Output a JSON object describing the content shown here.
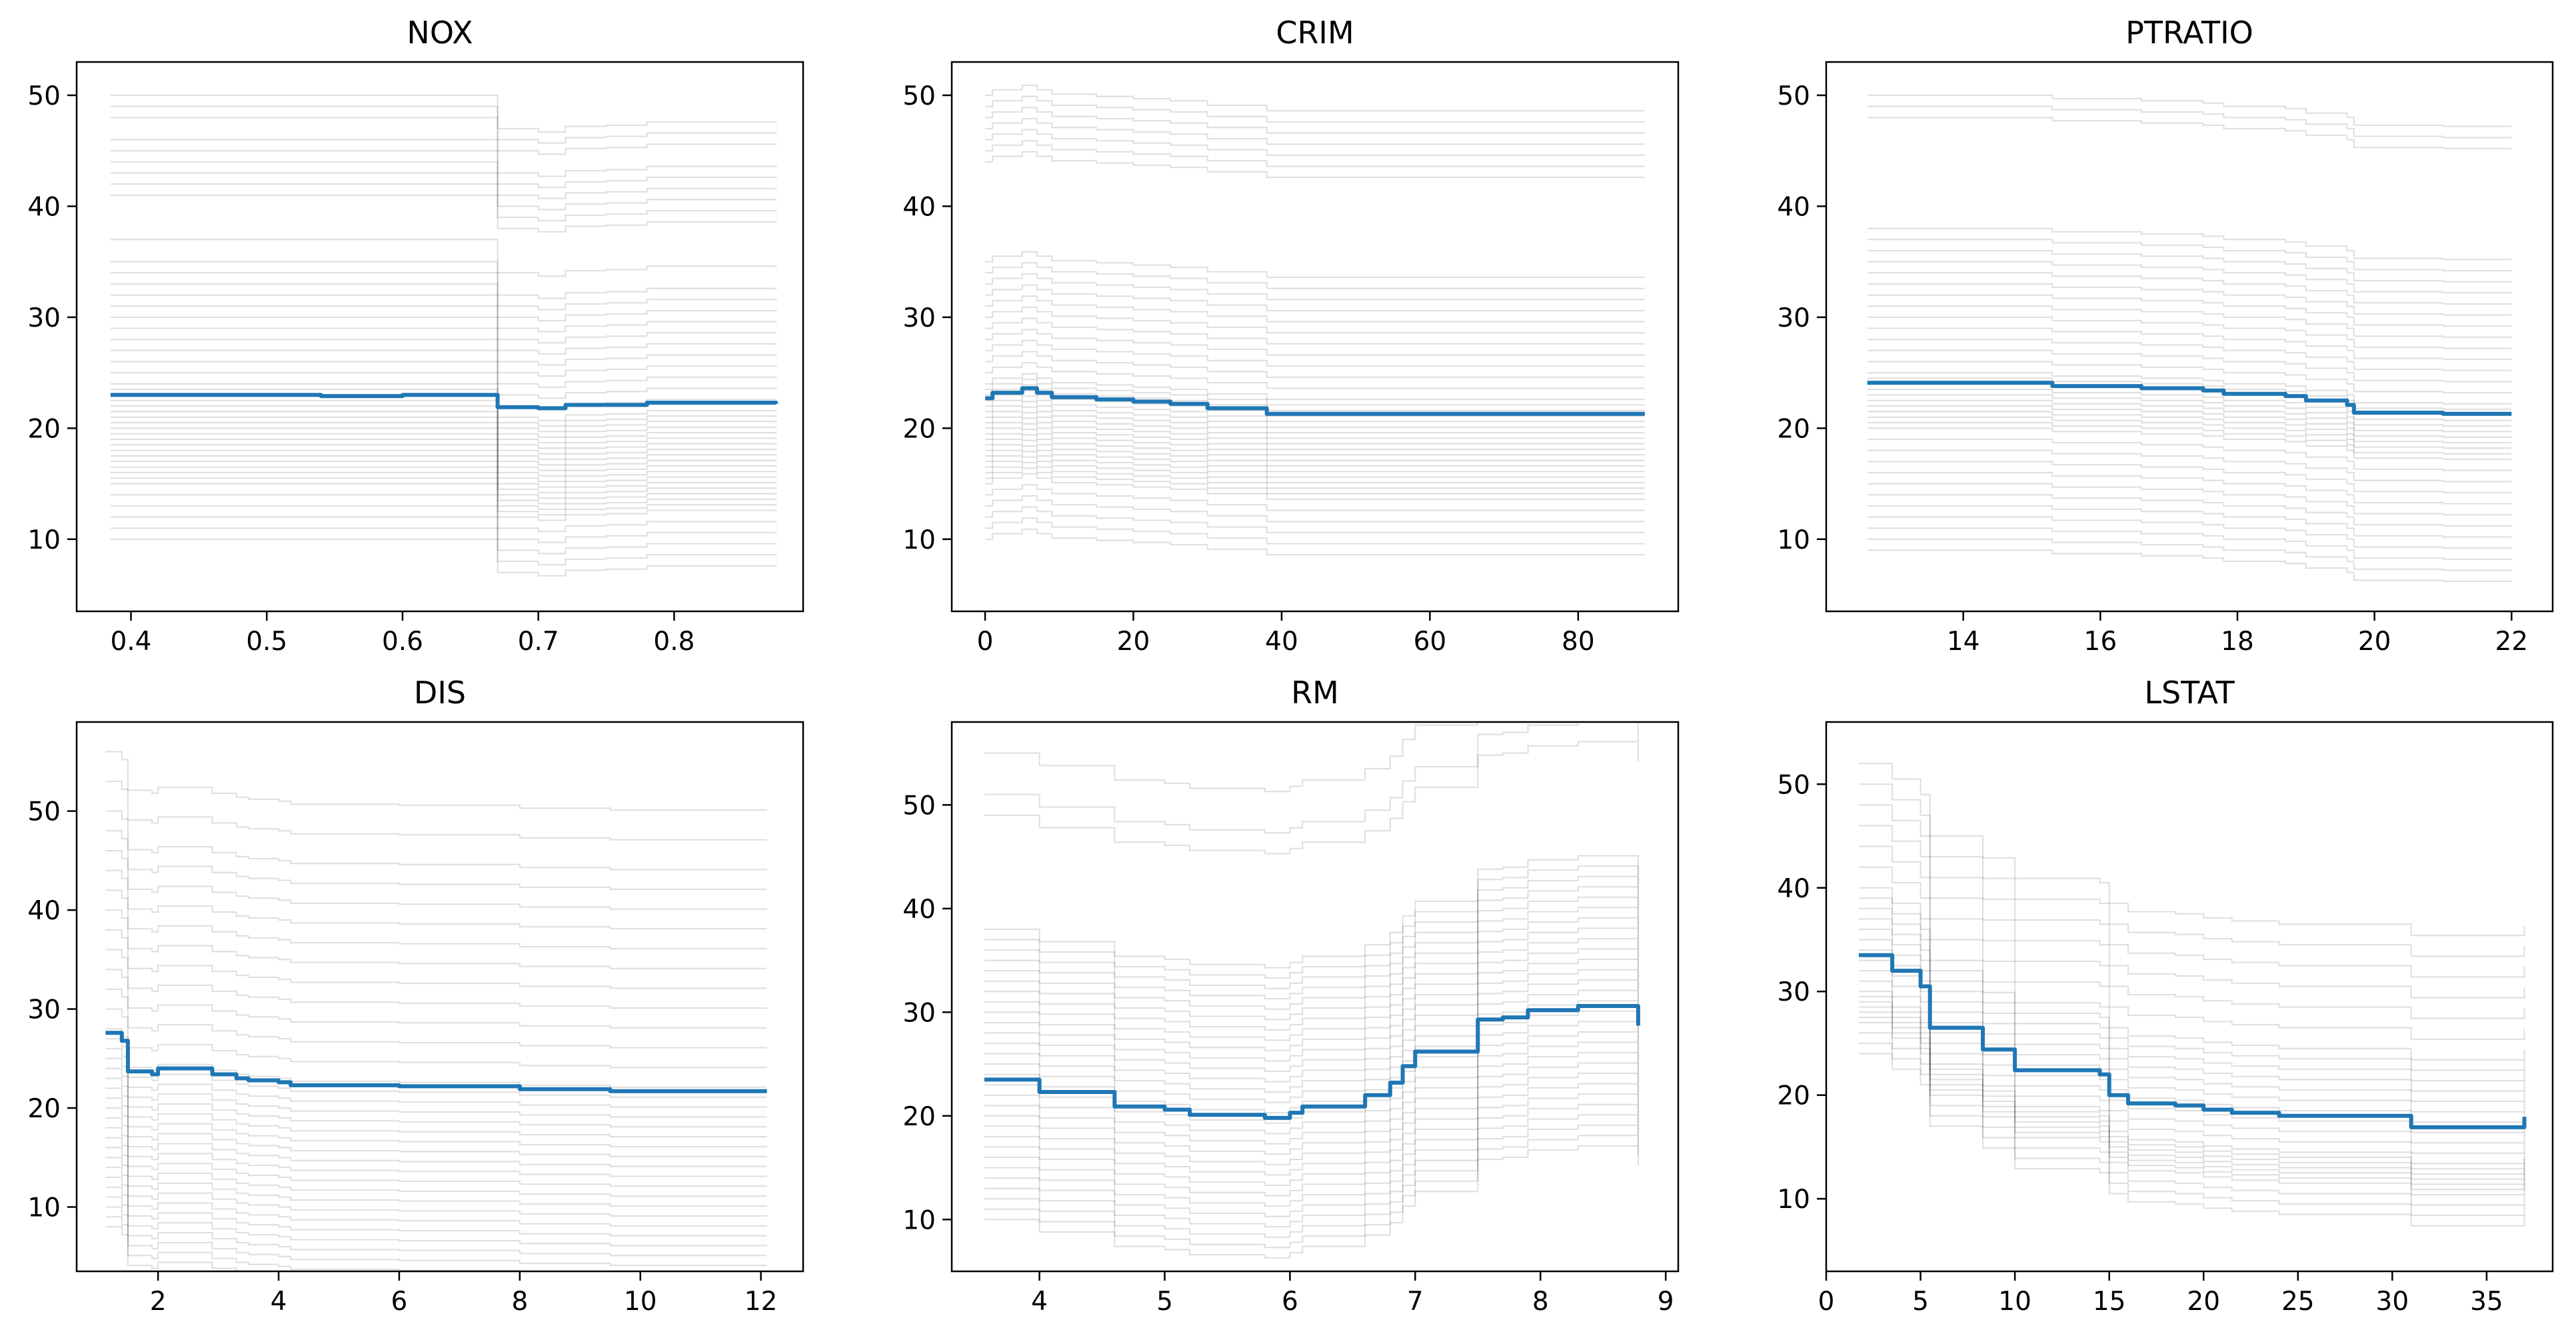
{
  "chart_data": [
    {
      "type": "line",
      "title": "NOX",
      "xlim": [
        0.36,
        0.895
      ],
      "ylim": [
        3.5,
        53
      ],
      "xticks": [
        {
          "value": 0.4,
          "label": "0.4"
        },
        {
          "value": 0.5,
          "label": "0.5"
        },
        {
          "value": 0.6,
          "label": "0.6"
        },
        {
          "value": 0.7,
          "label": "0.7"
        },
        {
          "value": 0.8,
          "label": "0.8"
        }
      ],
      "yticks": [
        {
          "value": 10,
          "label": "10"
        },
        {
          "value": 20,
          "label": "20"
        },
        {
          "value": 30,
          "label": "30"
        },
        {
          "value": 40,
          "label": "40"
        },
        {
          "value": 50,
          "label": "50"
        }
      ],
      "grid": false,
      "legend": "none",
      "mean_color": "#1f77b4",
      "ice_color": "#000000",
      "mean_curve": {
        "x": [
          0.385,
          0.45,
          0.53,
          0.54,
          0.58,
          0.6,
          0.66,
          0.67,
          0.7,
          0.72,
          0.75,
          0.78,
          0.8,
          0.875
        ],
        "y": [
          23.0,
          23.0,
          23.0,
          22.9,
          22.9,
          23.0,
          23.0,
          21.9,
          21.8,
          22.1,
          22.1,
          22.3,
          22.3,
          22.2
        ]
      },
      "ice_curves": {
        "x": [
          0.385,
          0.45,
          0.53,
          0.54,
          0.58,
          0.6,
          0.66,
          0.67,
          0.7,
          0.72,
          0.75,
          0.78,
          0.8,
          0.875
        ],
        "start_values": [
          10,
          11,
          12,
          13,
          14,
          15,
          15.5,
          16,
          16.5,
          17,
          17.5,
          18,
          18.5,
          19,
          19.5,
          20,
          20.5,
          21,
          21.5,
          22,
          22.5,
          23,
          23.5,
          24,
          25,
          26,
          27,
          28,
          29,
          30,
          31,
          32,
          33,
          34,
          35,
          37,
          41,
          42,
          43,
          44,
          45,
          46,
          48,
          49,
          50
        ],
        "offsets": [
          0,
          0,
          0,
          0,
          0,
          0,
          0,
          -3,
          -3.3,
          -2.8,
          -2.7,
          -2.4,
          -2.4,
          -2.5
        ]
      }
    },
    {
      "type": "line",
      "title": "CRIM",
      "xlim": [
        -4.5,
        93.5
      ],
      "ylim": [
        3.5,
        53
      ],
      "xticks": [
        {
          "value": 0,
          "label": "0"
        },
        {
          "value": 20,
          "label": "20"
        },
        {
          "value": 40,
          "label": "40"
        },
        {
          "value": 60,
          "label": "60"
        },
        {
          "value": 80,
          "label": "80"
        }
      ],
      "yticks": [
        {
          "value": 10,
          "label": "10"
        },
        {
          "value": 20,
          "label": "20"
        },
        {
          "value": 30,
          "label": "30"
        },
        {
          "value": 40,
          "label": "40"
        },
        {
          "value": 50,
          "label": "50"
        }
      ],
      "grid": false,
      "legend": "none",
      "mean_color": "#1f77b4",
      "ice_color": "#000000",
      "mean_curve": {
        "x": [
          0,
          1,
          3,
          5,
          7,
          9,
          15,
          20,
          25,
          30,
          38,
          50,
          70,
          89
        ],
        "y": [
          22.7,
          23.2,
          23.2,
          23.6,
          23.2,
          22.8,
          22.6,
          22.4,
          22.2,
          21.8,
          21.3,
          21.3,
          21.3,
          21.3
        ]
      },
      "ice_curves": {
        "x": [
          0,
          1,
          3,
          5,
          7,
          9,
          15,
          20,
          25,
          30,
          38,
          50,
          70,
          89
        ],
        "start_values": [
          10,
          11,
          12,
          13,
          14,
          15,
          15.5,
          16,
          16.5,
          17,
          17.5,
          18,
          18.5,
          19,
          19.5,
          20,
          20.5,
          21,
          21.5,
          22,
          22.5,
          23,
          23.5,
          24,
          25,
          26,
          27,
          28,
          29,
          30,
          31,
          32,
          33,
          34,
          35,
          44,
          45,
          46,
          47,
          48,
          49,
          50
        ],
        "offsets": [
          0,
          0.5,
          0.5,
          0.9,
          0.5,
          0.1,
          -0.1,
          -0.3,
          -0.5,
          -0.9,
          -1.4,
          -1.4,
          -1.4,
          -1.4
        ]
      }
    },
    {
      "type": "line",
      "title": "PTRATIO",
      "xlim": [
        12.0,
        22.6
      ],
      "ylim": [
        3.5,
        53
      ],
      "xticks": [
        {
          "value": 14,
          "label": "14"
        },
        {
          "value": 16,
          "label": "16"
        },
        {
          "value": 18,
          "label": "18"
        },
        {
          "value": 20,
          "label": "20"
        },
        {
          "value": 22,
          "label": "22"
        }
      ],
      "yticks": [
        {
          "value": 10,
          "label": "10"
        },
        {
          "value": 20,
          "label": "20"
        },
        {
          "value": 30,
          "label": "30"
        },
        {
          "value": 40,
          "label": "40"
        },
        {
          "value": 50,
          "label": "50"
        }
      ],
      "grid": false,
      "legend": "none",
      "mean_color": "#1f77b4",
      "ice_color": "#000000",
      "mean_curve": {
        "x": [
          12.6,
          14,
          15.2,
          15.3,
          16.6,
          17.5,
          17.8,
          18.4,
          18.7,
          19.0,
          19.6,
          19.7,
          20.9,
          21.0,
          22.0
        ],
        "y": [
          24.1,
          24.1,
          24.1,
          23.8,
          23.6,
          23.4,
          23.1,
          23.1,
          22.9,
          22.5,
          22.1,
          21.4,
          21.4,
          21.3,
          21.3
        ]
      },
      "ice_curves": {
        "x": [
          12.6,
          14,
          15.2,
          15.3,
          16.6,
          17.5,
          17.8,
          18.4,
          18.7,
          19.0,
          19.6,
          19.7,
          20.9,
          21.0,
          22.0
        ],
        "start_values": [
          9,
          10,
          11,
          12,
          13,
          14,
          15,
          16,
          17,
          18,
          19,
          20,
          20.5,
          21,
          21.5,
          22,
          22.5,
          23,
          23.5,
          24,
          24.5,
          25,
          26,
          27,
          28,
          29,
          30,
          31,
          32,
          33,
          34,
          35,
          36,
          37,
          38,
          48,
          49,
          50
        ],
        "offsets": [
          0,
          0,
          0,
          -0.3,
          -0.5,
          -0.7,
          -1.0,
          -1.0,
          -1.2,
          -1.6,
          -2.0,
          -2.7,
          -2.7,
          -2.8,
          -2.8
        ]
      }
    },
    {
      "type": "line",
      "title": "DIS",
      "xlim": [
        0.65,
        12.7
      ],
      "ylim": [
        3.5,
        59
      ],
      "xticks": [
        {
          "value": 2,
          "label": "2"
        },
        {
          "value": 4,
          "label": "4"
        },
        {
          "value": 6,
          "label": "6"
        },
        {
          "value": 8,
          "label": "8"
        },
        {
          "value": 10,
          "label": "10"
        },
        {
          "value": 12,
          "label": "12"
        }
      ],
      "yticks": [
        {
          "value": 10,
          "label": "10"
        },
        {
          "value": 20,
          "label": "20"
        },
        {
          "value": 30,
          "label": "30"
        },
        {
          "value": 40,
          "label": "40"
        },
        {
          "value": 50,
          "label": "50"
        }
      ],
      "grid": false,
      "legend": "none",
      "mean_color": "#1f77b4",
      "ice_color": "#000000",
      "mean_curve": {
        "x": [
          1.13,
          1.4,
          1.5,
          1.9,
          2.0,
          2.5,
          2.9,
          3.3,
          3.5,
          4.0,
          4.2,
          6.0,
          7.8,
          8.0,
          9.5,
          12.1
        ],
        "y": [
          27.6,
          26.8,
          23.7,
          23.4,
          24.0,
          24.0,
          23.4,
          23.0,
          22.8,
          22.6,
          22.3,
          22.2,
          22.2,
          21.9,
          21.7,
          21.7
        ]
      },
      "ice_curves": {
        "x": [
          1.13,
          1.4,
          1.5,
          1.9,
          2.0,
          2.5,
          2.9,
          3.3,
          3.5,
          4.0,
          4.2,
          6.0,
          7.8,
          8.0,
          9.5,
          12.1
        ],
        "start_values": [
          8,
          9,
          10,
          11,
          12,
          13,
          14,
          15,
          16,
          17,
          18,
          19,
          20,
          21,
          22,
          23,
          24,
          25,
          26,
          27,
          28,
          30,
          32,
          34,
          36,
          38,
          40,
          42,
          44,
          46,
          48,
          50,
          53,
          56
        ],
        "offsets": [
          0,
          -0.8,
          -3.9,
          -4.2,
          -3.6,
          -3.6,
          -4.2,
          -4.6,
          -4.8,
          -5.0,
          -5.3,
          -5.4,
          -5.4,
          -5.7,
          -5.9,
          -5.9
        ]
      }
    },
    {
      "type": "line",
      "title": "RM",
      "xlim": [
        3.3,
        9.1
      ],
      "ylim": [
        5,
        58
      ],
      "xticks": [
        {
          "value": 4,
          "label": "4"
        },
        {
          "value": 5,
          "label": "5"
        },
        {
          "value": 6,
          "label": "6"
        },
        {
          "value": 7,
          "label": "7"
        },
        {
          "value": 8,
          "label": "8"
        },
        {
          "value": 9,
          "label": "9"
        }
      ],
      "yticks": [
        {
          "value": 10,
          "label": "10"
        },
        {
          "value": 20,
          "label": "20"
        },
        {
          "value": 30,
          "label": "30"
        },
        {
          "value": 40,
          "label": "40"
        },
        {
          "value": 50,
          "label": "50"
        }
      ],
      "grid": false,
      "legend": "none",
      "mean_color": "#1f77b4",
      "ice_color": "#000000",
      "mean_curve": {
        "x": [
          3.56,
          4.0,
          4.6,
          5.0,
          5.2,
          5.7,
          5.8,
          6.0,
          6.1,
          6.5,
          6.6,
          6.8,
          6.9,
          7.0,
          7.4,
          7.5,
          7.7,
          7.9,
          8.3,
          8.78
        ],
        "y": [
          23.5,
          22.3,
          20.9,
          20.6,
          20.1,
          20.1,
          19.8,
          20.3,
          20.9,
          20.9,
          22.0,
          23.2,
          24.8,
          26.2,
          26.2,
          29.3,
          29.5,
          30.2,
          30.6,
          28.7
        ]
      },
      "ice_curves": {
        "x": [
          3.56,
          4.0,
          4.6,
          5.0,
          5.2,
          5.7,
          5.8,
          6.0,
          6.1,
          6.5,
          6.6,
          6.8,
          6.9,
          7.0,
          7.4,
          7.5,
          7.7,
          7.9,
          8.3,
          8.78
        ],
        "start_values": [
          10,
          11,
          12,
          13,
          14,
          15,
          16,
          17,
          18,
          19,
          20,
          21,
          22,
          23,
          24,
          25,
          26,
          27,
          28,
          29,
          30,
          31,
          32,
          33,
          34,
          35,
          36,
          37,
          38,
          49,
          51,
          55
        ],
        "offsets": [
          0,
          -1.2,
          -2.6,
          -2.9,
          -3.4,
          -3.4,
          -3.7,
          -3.2,
          -2.6,
          -2.6,
          -1.5,
          -0.3,
          1.3,
          2.7,
          2.7,
          5.8,
          6.0,
          6.7,
          7.1,
          5.2
        ]
      }
    },
    {
      "type": "line",
      "title": "LSTAT",
      "xlim": [
        0,
        38.5
      ],
      "ylim": [
        3,
        56
      ],
      "xticks": [
        {
          "value": 0,
          "label": "0"
        },
        {
          "value": 5,
          "label": "5"
        },
        {
          "value": 10,
          "label": "10"
        },
        {
          "value": 15,
          "label": "15"
        },
        {
          "value": 20,
          "label": "20"
        },
        {
          "value": 25,
          "label": "25"
        },
        {
          "value": 30,
          "label": "30"
        },
        {
          "value": 35,
          "label": "35"
        }
      ],
      "yticks": [
        {
          "value": 10,
          "label": "10"
        },
        {
          "value": 20,
          "label": "20"
        },
        {
          "value": 30,
          "label": "30"
        },
        {
          "value": 40,
          "label": "40"
        },
        {
          "value": 50,
          "label": "50"
        }
      ],
      "grid": false,
      "legend": "none",
      "mean_color": "#1f77b4",
      "ice_color": "#000000",
      "mean_curve": {
        "x": [
          1.73,
          3.0,
          3.5,
          4.5,
          5.0,
          5.5,
          8.0,
          8.3,
          9.5,
          10.0,
          14.5,
          15.0,
          16.0,
          18.5,
          20.0,
          21.5,
          24.0,
          30.0,
          31.0,
          37.0
        ],
        "y": [
          33.5,
          33.5,
          32.0,
          32.0,
          30.5,
          26.5,
          26.5,
          24.4,
          24.4,
          22.4,
          22.0,
          20.0,
          19.2,
          19.0,
          18.6,
          18.3,
          18.0,
          18.0,
          16.9,
          17.9
        ]
      },
      "ice_curves": {
        "x": [
          1.73,
          3.0,
          3.5,
          4.5,
          5.0,
          5.5,
          8.0,
          8.3,
          9.5,
          10.0,
          14.5,
          15.0,
          16.0,
          18.5,
          20.0,
          21.5,
          24.0,
          30.0,
          31.0,
          37.0
        ],
        "start_values": [
          24,
          25,
          26,
          27,
          27.5,
          28,
          28.5,
          29,
          29.5,
          30,
          31,
          32,
          33,
          34,
          35,
          36,
          37,
          38,
          39,
          40,
          42,
          44,
          46,
          48,
          50,
          52
        ],
        "offsets": [
          0,
          0,
          -1.5,
          -1.5,
          -3.0,
          -7.0,
          -7.0,
          -9.1,
          -9.1,
          -11.1,
          -11.5,
          -13.5,
          -14.3,
          -14.5,
          -14.9,
          -15.2,
          -15.5,
          -15.5,
          -16.6,
          -15.6
        ]
      }
    }
  ]
}
